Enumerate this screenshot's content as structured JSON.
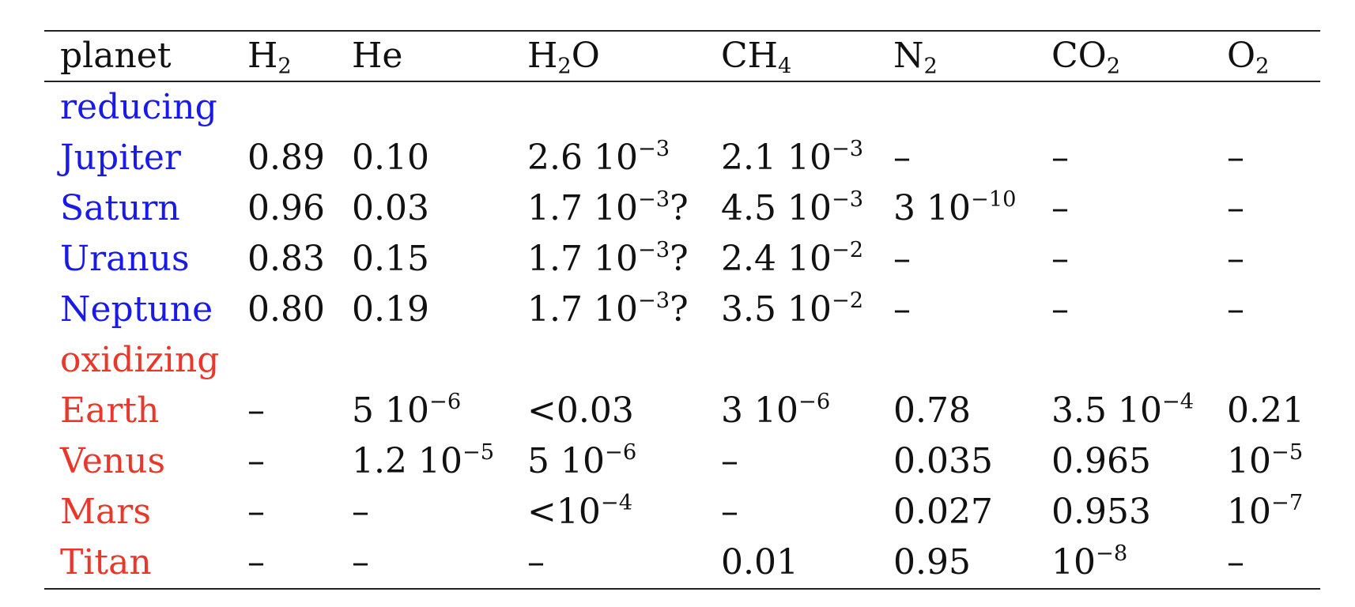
{
  "colors": {
    "reducing": "#1a1ae6",
    "oxidizing": "#e8382b",
    "text": "#111111",
    "rule": "#222222"
  },
  "header": {
    "planet": "planet",
    "h2": {
      "base": "H",
      "sub": "2"
    },
    "he": "He",
    "h2o": {
      "a": "H",
      "sub": "2",
      "b": "O"
    },
    "ch4": {
      "base": "CH",
      "sub": "4"
    },
    "n2": {
      "base": "N",
      "sub": "2"
    },
    "co2": {
      "base": "CO",
      "sub": "2"
    },
    "o2": {
      "base": "O",
      "sub": "2"
    }
  },
  "groups": {
    "reducing": "reducing",
    "oxidizing": "oxidizing"
  },
  "rows": {
    "jupiter": {
      "planet": "Jupiter",
      "h2": "0.89",
      "he": "0.10",
      "h2o": {
        "base": "2.6 10",
        "exp": "−3",
        "suffix": ""
      },
      "ch4": {
        "base": "2.1 10",
        "exp": "−3"
      },
      "n2": "–",
      "co2": "–",
      "o2": "–"
    },
    "saturn": {
      "planet": "Saturn",
      "h2": "0.96",
      "he": "0.03",
      "h2o": {
        "base": "1.7 10",
        "exp": "−3",
        "suffix": "?"
      },
      "ch4": {
        "base": "4.5 10",
        "exp": "−3"
      },
      "n2": {
        "base": "3 10",
        "exp": "−10"
      },
      "co2": "–",
      "o2": "–"
    },
    "uranus": {
      "planet": "Uranus",
      "h2": "0.83",
      "he": "0.15",
      "h2o": {
        "base": "1.7 10",
        "exp": "−3",
        "suffix": "?"
      },
      "ch4": {
        "base": "2.4 10",
        "exp": "−2"
      },
      "n2": "–",
      "co2": "–",
      "o2": "–"
    },
    "neptune": {
      "planet": "Neptune",
      "h2": "0.80",
      "he": "0.19",
      "h2o": {
        "base": "1.7 10",
        "exp": "−3",
        "suffix": "?"
      },
      "ch4": {
        "base": "3.5 10",
        "exp": "−2"
      },
      "n2": "–",
      "co2": "–",
      "o2": "–"
    },
    "earth": {
      "planet": "Earth",
      "h2": "–",
      "he": {
        "base": "5 10",
        "exp": "−6"
      },
      "h2o": "<0.03",
      "ch4": {
        "base": "3 10",
        "exp": "−6"
      },
      "n2": "0.78",
      "co2": {
        "base": "3.5 10",
        "exp": "−4"
      },
      "o2": "0.21"
    },
    "venus": {
      "planet": "Venus",
      "h2": "–",
      "he": {
        "base": "1.2 10",
        "exp": "−5"
      },
      "h2o": {
        "base": "5 10",
        "exp": "−6"
      },
      "ch4": "–",
      "n2": "0.035",
      "co2": "0.965",
      "o2": {
        "base": "10",
        "exp": "−5"
      }
    },
    "mars": {
      "planet": "Mars",
      "h2": "–",
      "he": "–",
      "h2o": {
        "base": "<10",
        "exp": "−4"
      },
      "ch4": "–",
      "n2": "0.027",
      "co2": "0.953",
      "o2": {
        "base": "10",
        "exp": "−7"
      }
    },
    "titan": {
      "planet": "Titan",
      "h2": "–",
      "he": "–",
      "h2o": "–",
      "ch4": "0.01",
      "n2": "0.95",
      "co2": {
        "base": "10",
        "exp": "−8"
      },
      "o2": "–"
    }
  }
}
